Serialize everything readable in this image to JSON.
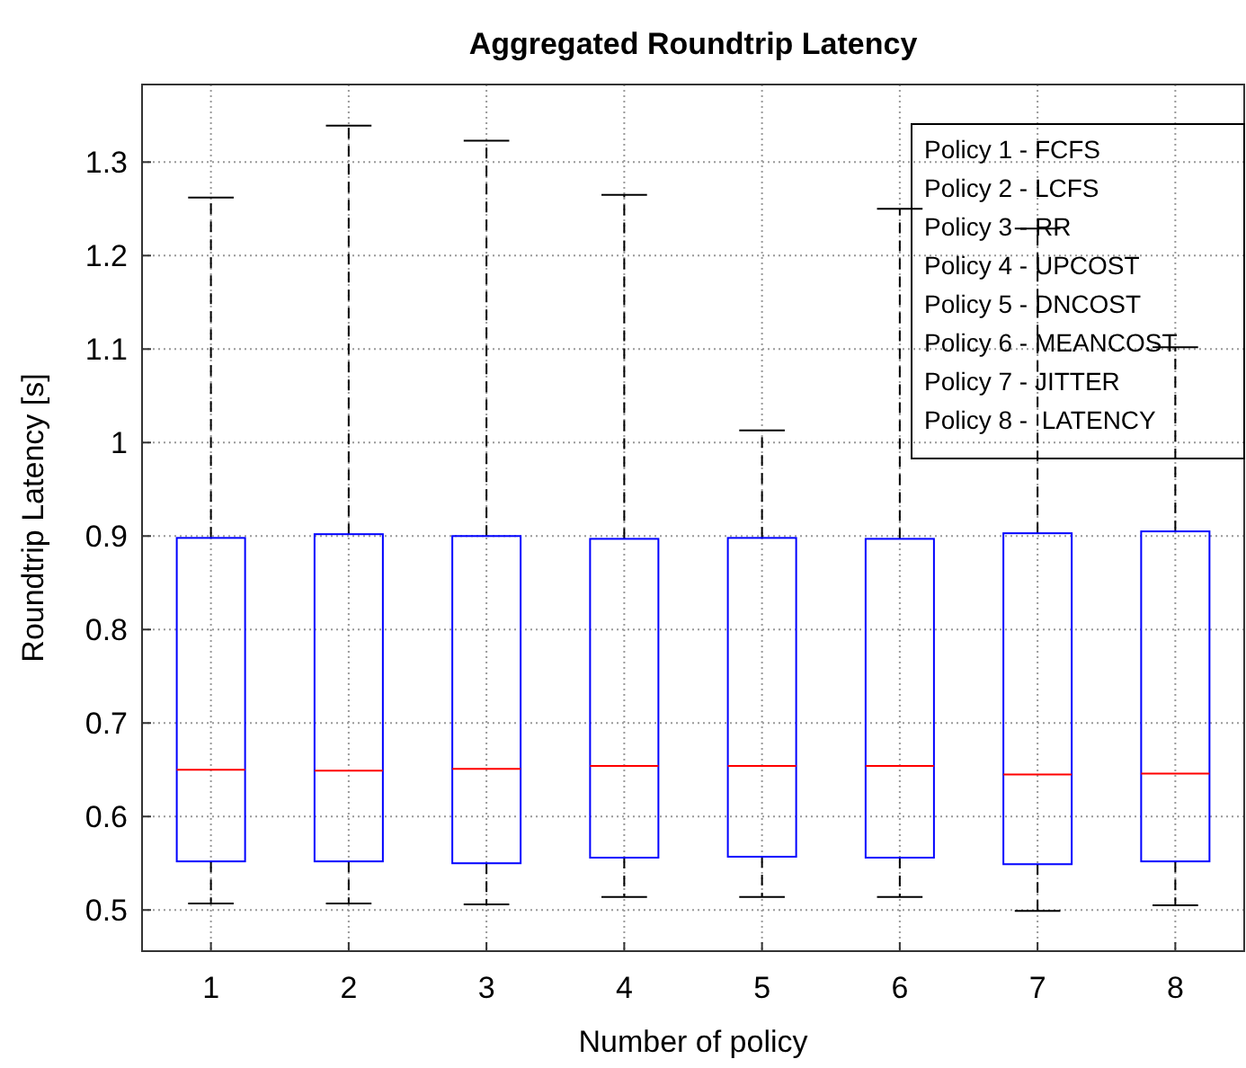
{
  "chart_data": {
    "type": "box",
    "title": "Aggregated Roundtrip Latency",
    "xlabel": "Number of policy",
    "ylabel": "Roundtrip Latency [s]",
    "categories": [
      "1",
      "2",
      "3",
      "4",
      "5",
      "6",
      "7",
      "8"
    ],
    "series": [
      {
        "color": "#0000ff",
        "boxes": [
          {
            "low": 0.507,
            "q1": 0.552,
            "median": 0.65,
            "q3": 0.898,
            "high": 1.262
          },
          {
            "low": 0.507,
            "q1": 0.552,
            "median": 0.649,
            "q3": 0.902,
            "high": 1.339
          },
          {
            "low": 0.506,
            "q1": 0.55,
            "median": 0.651,
            "q3": 0.9,
            "high": 1.323
          },
          {
            "low": 0.514,
            "q1": 0.556,
            "median": 0.654,
            "q3": 0.897,
            "high": 1.265
          },
          {
            "low": 0.514,
            "q1": 0.557,
            "median": 0.654,
            "q3": 0.898,
            "high": 1.013
          },
          {
            "low": 0.514,
            "q1": 0.556,
            "median": 0.654,
            "q3": 0.897,
            "high": 1.25
          },
          {
            "low": 0.499,
            "q1": 0.549,
            "median": 0.645,
            "q3": 0.903,
            "high": 1.229
          },
          {
            "low": 0.505,
            "q1": 0.552,
            "median": 0.646,
            "q3": 0.905,
            "high": 1.102
          }
        ]
      }
    ],
    "ylim": [
      0.456,
      1.383
    ],
    "yticks": [
      0.5,
      0.6,
      0.7,
      0.8,
      0.9,
      1,
      1.1,
      1.2,
      1.3
    ],
    "grid": true,
    "annotations": [
      "Policy 1 - FCFS",
      "Policy 2 - LCFS",
      "Policy 3 - RR",
      "Policy 4 - UPCOST",
      "Policy 5 - DNCOST",
      "Policy 6 - MEANCOST",
      "Policy 7 - JITTER",
      "Policy 8 -  LATENCY"
    ]
  }
}
